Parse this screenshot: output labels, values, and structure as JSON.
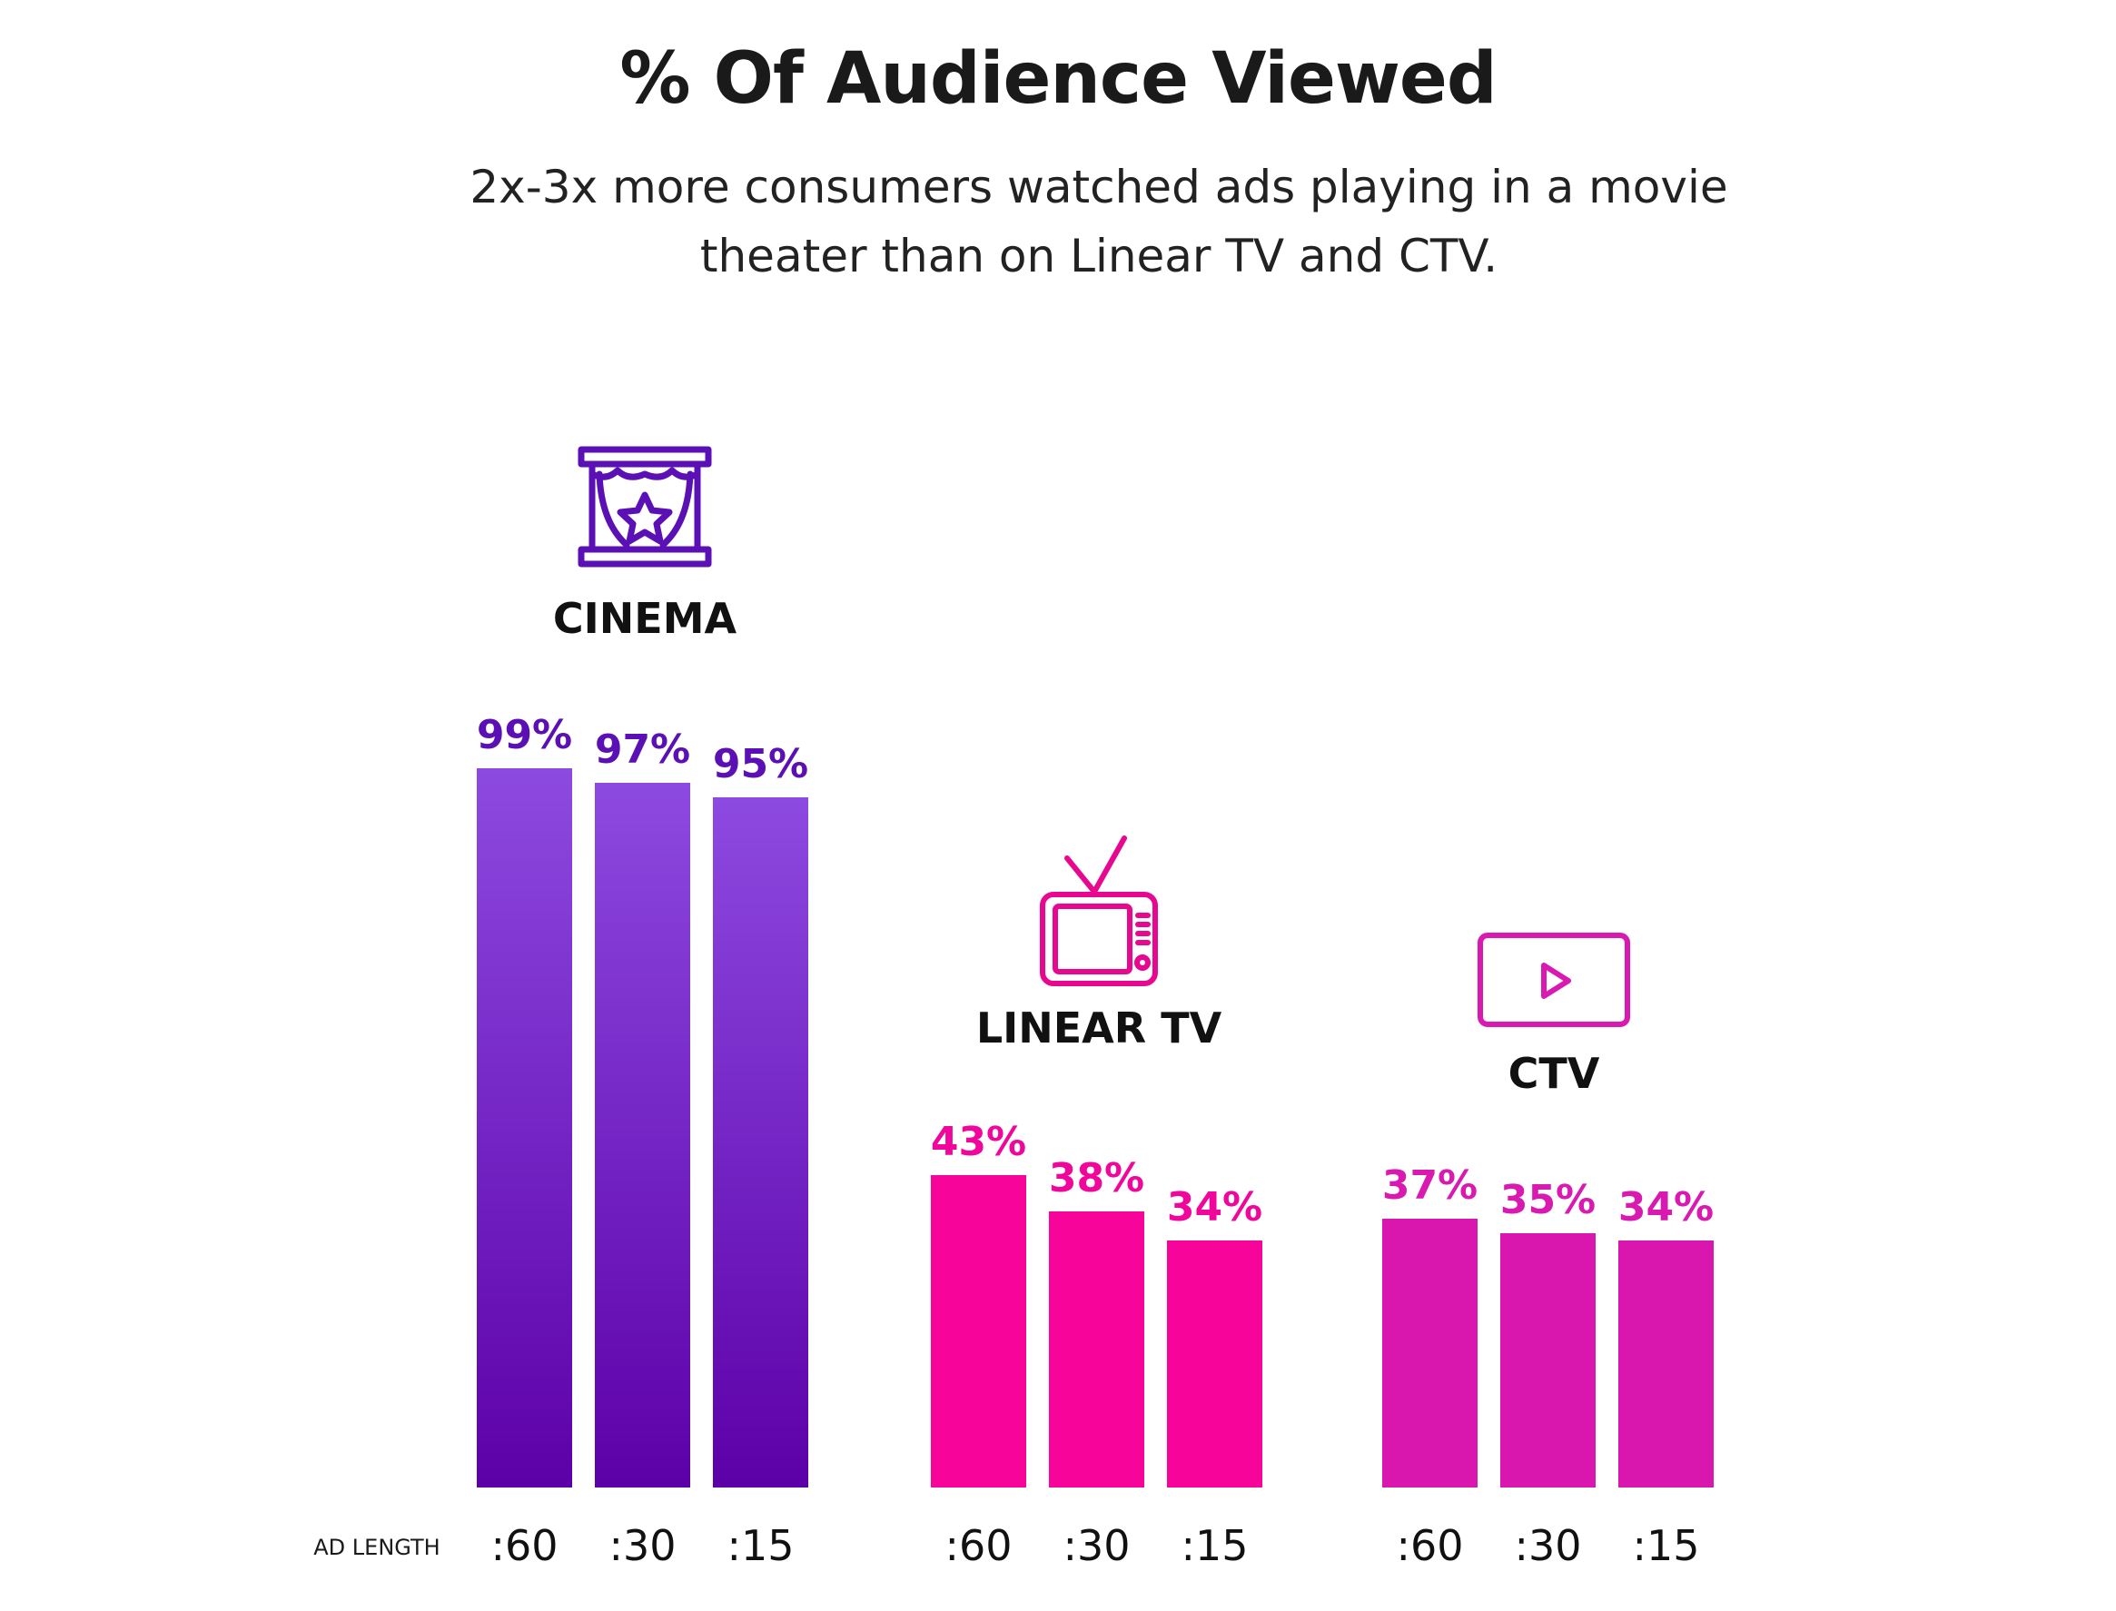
{
  "title": "% Of Audience Viewed",
  "subtitle": "2x-3x more consumers watched ads playing in a movie theater than on Linear TV and CTV.",
  "chart_data": {
    "type": "bar",
    "title": "% Of Audience Viewed",
    "xlabel": "AD LENGTH",
    "ylabel": "",
    "ylim": [
      0,
      100
    ],
    "categories": [
      ":60",
      ":30",
      ":15"
    ],
    "series": [
      {
        "name": "CINEMA",
        "icon": "theater-icon",
        "values": [
          99,
          97,
          95
        ],
        "labels": [
          "99%",
          "97%",
          "95%"
        ],
        "label_color": "#5a10b4",
        "color_top": "#8d4ae0",
        "color_bottom": "#5c00a8"
      },
      {
        "name": "LINEAR TV",
        "icon": "tv-icon",
        "values": [
          43,
          38,
          34
        ],
        "labels": [
          "43%",
          "38%",
          "34%"
        ],
        "label_color": "#f0069b",
        "color_top": "#f7049b",
        "color_bottom": "#f7049b",
        "icon_color": "#e8078f"
      },
      {
        "name": "CTV",
        "icon": "play-screen-icon",
        "values": [
          37,
          35,
          34
        ],
        "labels": [
          "37%",
          "35%",
          "34%"
        ],
        "label_color": "#d91ab0",
        "color_top": "#d916ae",
        "color_bottom": "#d916ae",
        "icon_color": "#d91ab0"
      }
    ]
  }
}
